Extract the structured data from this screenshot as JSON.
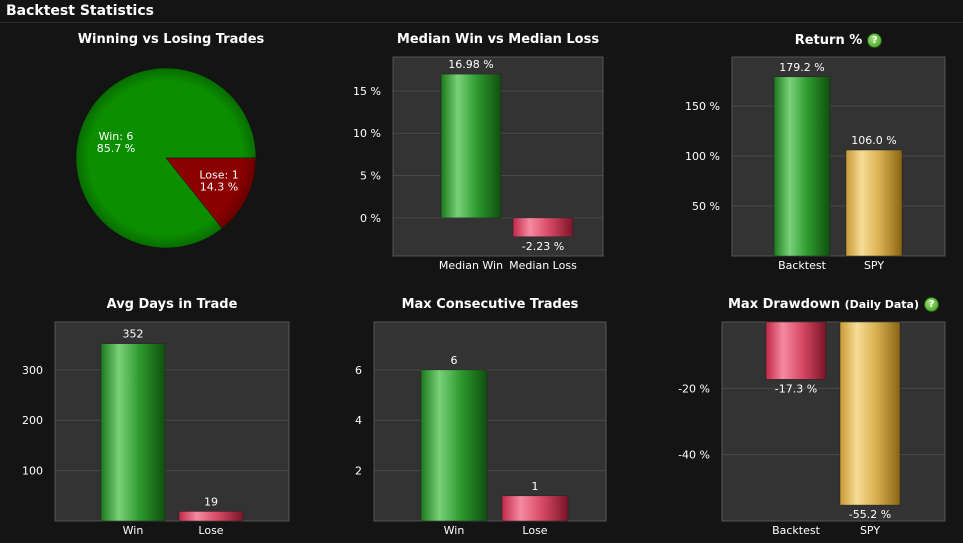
{
  "page": {
    "title": "Backtest Statistics"
  },
  "help_icon_label": "?",
  "colors": {
    "background": "#141414",
    "plot_background": "#333333",
    "grid": "#4a4a4a",
    "win_green": "#1f8f1f",
    "lose_red": "#e04060",
    "spy_gold": "#d8b04c",
    "pie_win": "#0b8f00",
    "pie_lose": "#8b0000"
  },
  "chart_data": [
    {
      "id": "winning-vs-losing",
      "type": "pie",
      "title": "Winning vs Losing Trades",
      "slices": [
        {
          "label": "Win",
          "count": 6,
          "percent": 85.7,
          "color": "#0b8f00"
        },
        {
          "label": "Lose",
          "count": 1,
          "percent": 14.3,
          "color": "#8b0000"
        }
      ]
    },
    {
      "id": "median-win-loss",
      "type": "bar",
      "title": "Median Win vs Median Loss",
      "categories": [
        "Median Win",
        "Median Loss"
      ],
      "values": [
        16.98,
        -2.23
      ],
      "value_labels": [
        "16.98 %",
        "-2.23 %"
      ],
      "ylim": [
        -4.5,
        19
      ],
      "yticks": [
        0,
        5,
        10,
        15
      ],
      "ytick_labels": [
        "0 %",
        "5 %",
        "10 %",
        "15 %"
      ],
      "colors": [
        "green",
        "red"
      ]
    },
    {
      "id": "return-pct",
      "type": "bar",
      "title": "Return %",
      "categories": [
        "Backtest",
        "SPY"
      ],
      "values": [
        179.2,
        106.0
      ],
      "value_labels": [
        "179.2 %",
        "106.0 %"
      ],
      "ylim": [
        0,
        199
      ],
      "yticks": [
        50,
        100,
        150
      ],
      "ytick_labels": [
        "50 %",
        "100 %",
        "150 %"
      ],
      "colors": [
        "green",
        "gold"
      ]
    },
    {
      "id": "avg-days",
      "type": "bar",
      "title": "Avg Days in Trade",
      "categories": [
        "Win",
        "Lose"
      ],
      "values": [
        352,
        19
      ],
      "value_labels": [
        "352",
        "19"
      ],
      "ylim": [
        0,
        395
      ],
      "yticks": [
        100,
        200,
        300
      ],
      "ytick_labels": [
        "100",
        "200",
        "300"
      ],
      "colors": [
        "green",
        "red"
      ]
    },
    {
      "id": "max-consecutive",
      "type": "bar",
      "title": "Max Consecutive Trades",
      "categories": [
        "Win",
        "Lose"
      ],
      "values": [
        6,
        1
      ],
      "value_labels": [
        "6",
        "1"
      ],
      "ylim": [
        0,
        7.9
      ],
      "yticks": [
        2,
        4,
        6
      ],
      "ytick_labels": [
        "2",
        "4",
        "6"
      ],
      "colors": [
        "green",
        "red"
      ]
    },
    {
      "id": "max-drawdown",
      "type": "bar",
      "title": "Max Drawdown",
      "subtitle": "(Daily Data)",
      "categories": [
        "Backtest",
        "SPY"
      ],
      "values": [
        -17.3,
        -55.2
      ],
      "value_labels": [
        "-17.3 %",
        "-55.2 %"
      ],
      "ylim": [
        -60,
        0
      ],
      "yticks": [
        -20,
        -40
      ],
      "ytick_labels": [
        "-20 %",
        "-40 %"
      ],
      "colors": [
        "red",
        "gold"
      ]
    }
  ]
}
